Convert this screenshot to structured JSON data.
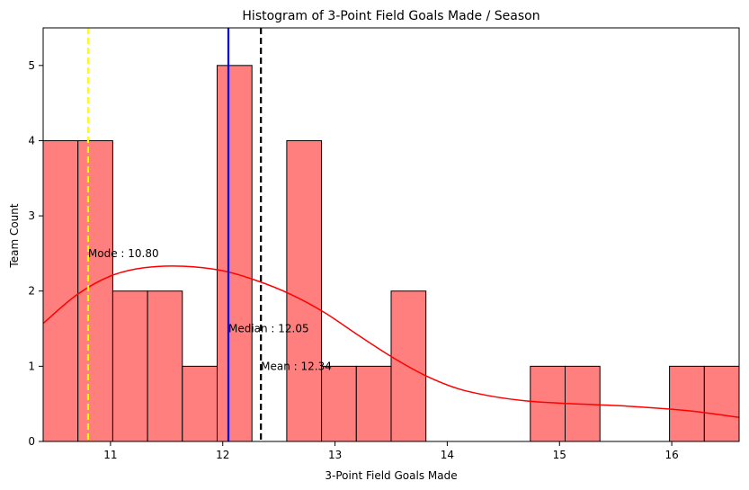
{
  "chart_data": {
    "type": "bar",
    "title": "Histogram of 3-Point Field Goals Made / Season",
    "xlabel": "3-Point Field Goals Made",
    "ylabel": "Team Count",
    "xlim": [
      10.4,
      16.6
    ],
    "ylim": [
      0,
      5.5
    ],
    "xticks": [
      11,
      12,
      13,
      14,
      15,
      16
    ],
    "yticks": [
      0,
      1,
      2,
      3,
      4,
      5
    ],
    "bins": [
      {
        "start": 10.4,
        "end": 10.71,
        "count": 4
      },
      {
        "start": 10.71,
        "end": 11.02,
        "count": 4
      },
      {
        "start": 11.02,
        "end": 11.33,
        "count": 2
      },
      {
        "start": 11.33,
        "end": 11.64,
        "count": 2
      },
      {
        "start": 11.64,
        "end": 11.95,
        "count": 1
      },
      {
        "start": 11.95,
        "end": 12.26,
        "count": 5
      },
      {
        "start": 12.26,
        "end": 12.57,
        "count": 0
      },
      {
        "start": 12.57,
        "end": 12.88,
        "count": 4
      },
      {
        "start": 12.88,
        "end": 13.19,
        "count": 1
      },
      {
        "start": 13.19,
        "end": 13.5,
        "count": 1
      },
      {
        "start": 13.5,
        "end": 13.81,
        "count": 2
      },
      {
        "start": 13.81,
        "end": 14.12,
        "count": 0
      },
      {
        "start": 14.12,
        "end": 14.43,
        "count": 0
      },
      {
        "start": 14.43,
        "end": 14.74,
        "count": 0
      },
      {
        "start": 14.74,
        "end": 15.05,
        "count": 1
      },
      {
        "start": 15.05,
        "end": 15.36,
        "count": 1
      },
      {
        "start": 15.36,
        "end": 15.67,
        "count": 0
      },
      {
        "start": 15.67,
        "end": 15.98,
        "count": 0
      },
      {
        "start": 15.98,
        "end": 16.29,
        "count": 1
      },
      {
        "start": 16.29,
        "end": 16.6,
        "count": 1
      }
    ],
    "kde": {
      "x": [
        10.4,
        10.7,
        11.0,
        11.3,
        11.65,
        12.0,
        12.3,
        12.6,
        12.9,
        13.2,
        13.5,
        13.8,
        14.1,
        14.4,
        14.7,
        15.0,
        15.3,
        15.6,
        15.9,
        16.2,
        16.6
      ],
      "y": [
        1.57,
        1.95,
        2.2,
        2.31,
        2.33,
        2.27,
        2.14,
        1.96,
        1.72,
        1.42,
        1.13,
        0.88,
        0.7,
        0.6,
        0.54,
        0.51,
        0.49,
        0.47,
        0.44,
        0.4,
        0.32
      ]
    },
    "vlines": [
      {
        "x": 10.8,
        "color": "#ffff00",
        "style": "dashed",
        "label": "Mode : 10.80",
        "label_y": 2.5
      },
      {
        "x": 12.05,
        "color": "#0000ff",
        "style": "solid",
        "label": "Median : 12.05",
        "label_y": 1.5
      },
      {
        "x": 12.34,
        "color": "#000000",
        "style": "dashed",
        "label": "Mean : 12.34",
        "label_y": 1.0
      }
    ],
    "colors": {
      "bar_fill": "#ff7f7f",
      "bar_edge": "#000000",
      "kde": "#ff0000"
    },
    "grid": false,
    "legend": "none"
  }
}
